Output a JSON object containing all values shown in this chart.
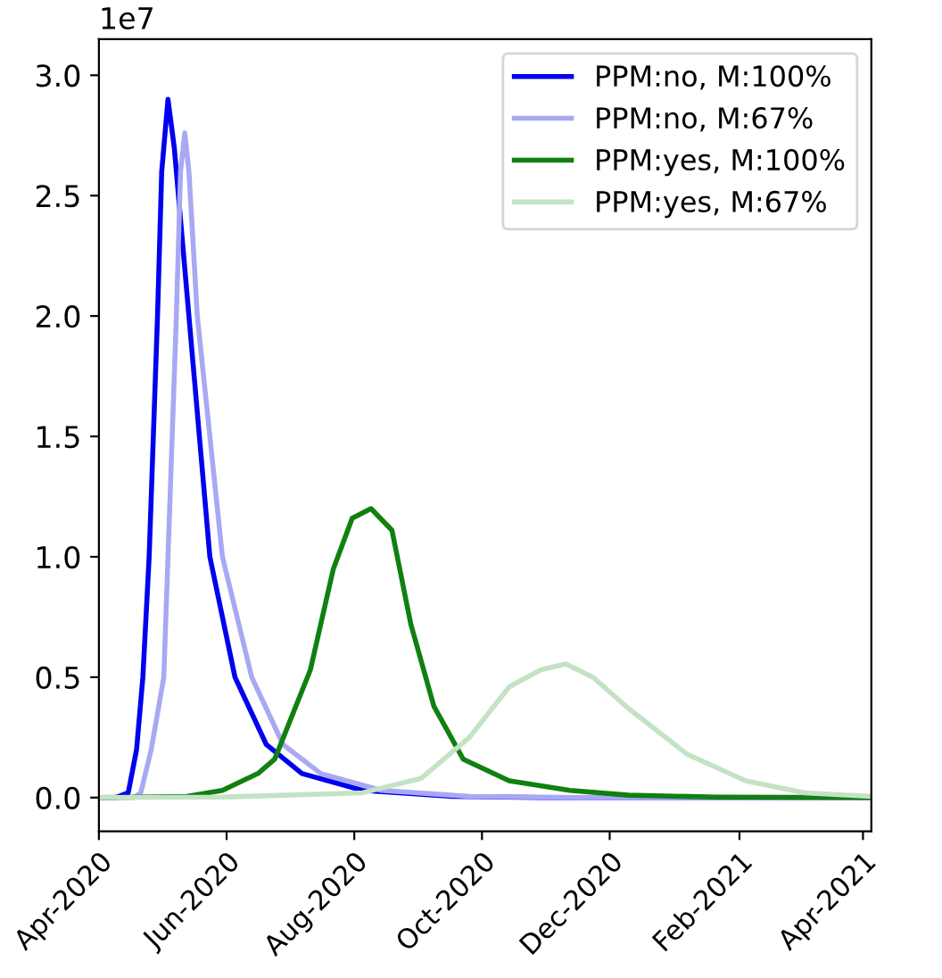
{
  "chart_data": {
    "type": "line",
    "xlim": [
      "2020-04-01",
      "2021-04-05"
    ],
    "xticks": [
      {
        "value": "2020-04-01",
        "label": "Apr-2020"
      },
      {
        "value": "2020-06-01",
        "label": "Jun-2020"
      },
      {
        "value": "2020-08-01",
        "label": "Aug-2020"
      },
      {
        "value": "2020-10-01",
        "label": "Oct-2020"
      },
      {
        "value": "2020-12-01",
        "label": "Dec-2020"
      },
      {
        "value": "2021-02-01",
        "label": "Feb-2021"
      },
      {
        "value": "2021-04-01",
        "label": "Apr-2021"
      }
    ],
    "ylim": [
      -0.14,
      3.15
    ],
    "yticks": [
      {
        "value": 0,
        "label": "0.0"
      },
      0.5,
      {
        "value": 1,
        "label": "1.0"
      },
      1.5,
      {
        "value": 2,
        "label": "2.0"
      },
      2.5,
      {
        "value": 3,
        "label": "3.0"
      }
    ],
    "annotations": [
      "1e7"
    ],
    "legend": "top right",
    "grid": false,
    "marker": "none",
    "line_style": "solid",
    "series": [
      {
        "name": "PPM:no, M:100%",
        "color": "#0000ee",
        "x": [
          "2020-04-01",
          "2020-04-09",
          "2020-04-15",
          "2020-04-19",
          "2020-04-22",
          "2020-04-25",
          "2020-04-29",
          "2020-05-01",
          "2020-05-04",
          "2020-05-07",
          "2020-05-14",
          "2020-05-24",
          "2020-06-05",
          "2020-06-20",
          "2020-07-07",
          "2020-08-05",
          "2020-09-17",
          "2020-10-29",
          "2021-04-05"
        ],
        "values": [
          0,
          0,
          0.02,
          0.2,
          0.5,
          1.0,
          2.0,
          2.6,
          2.9,
          2.7,
          2.0,
          1.0,
          0.5,
          0.22,
          0.1,
          0.03,
          0.005,
          0,
          0
        ]
      },
      {
        "name": "PPM:no, M:67%",
        "color": "#a8a8f4",
        "x": [
          "2020-04-01",
          "2020-04-18",
          "2020-04-21",
          "2020-04-26",
          "2020-05-02",
          "2020-05-04",
          "2020-05-08",
          "2020-05-10",
          "2020-05-12",
          "2020-05-14",
          "2020-05-18",
          "2020-05-30",
          "2020-06-13",
          "2020-06-28",
          "2020-07-16",
          "2020-08-14",
          "2020-09-25",
          "2020-11-17",
          "2021-04-05"
        ],
        "values": [
          0,
          0,
          0.02,
          0.2,
          0.5,
          1.0,
          2.0,
          2.6,
          2.76,
          2.6,
          2.0,
          1.0,
          0.5,
          0.22,
          0.1,
          0.03,
          0.005,
          0,
          0
        ]
      },
      {
        "name": "PPM:yes, M:100%",
        "color": "#108010",
        "x": [
          "2020-04-01",
          "2020-05-13",
          "2020-05-30",
          "2020-06-16",
          "2020-06-24",
          "2020-07-11",
          "2020-07-22",
          "2020-07-31",
          "2020-08-09",
          "2020-08-19",
          "2020-08-28",
          "2020-09-08",
          "2020-09-22",
          "2020-10-14",
          "2020-11-12",
          "2020-12-10",
          "2021-01-21",
          "2021-04-05"
        ],
        "values": [
          0,
          0.005,
          0.03,
          0.1,
          0.16,
          0.53,
          0.95,
          1.16,
          1.2,
          1.11,
          0.72,
          0.38,
          0.16,
          0.07,
          0.03,
          0.01,
          0.002,
          0
        ]
      },
      {
        "name": "PPM:yes, M:67%",
        "color": "#c4e2c4",
        "x": [
          "2020-04-01",
          "2020-05-30",
          "2020-08-05",
          "2020-09-02",
          "2020-09-25",
          "2020-10-14",
          "2020-10-29",
          "2020-11-10",
          "2020-11-23",
          "2020-12-10",
          "2021-01-07",
          "2021-02-04",
          "2021-03-04",
          "2021-04-05"
        ],
        "values": [
          0,
          0.002,
          0.02,
          0.08,
          0.25,
          0.46,
          0.53,
          0.555,
          0.5,
          0.37,
          0.18,
          0.07,
          0.02,
          0.005
        ]
      }
    ]
  }
}
